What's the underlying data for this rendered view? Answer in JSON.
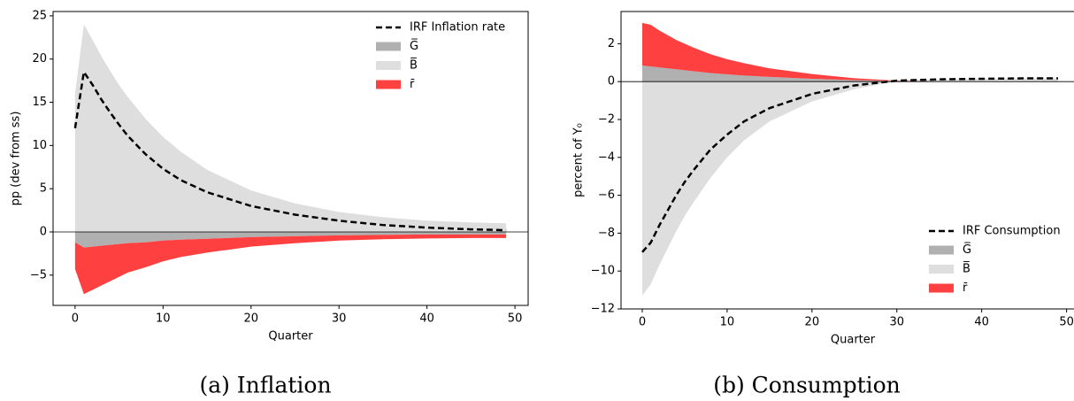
{
  "chart_data": [
    {
      "type": "area",
      "caption": "(a) Inflation",
      "xlabel": "Quarter",
      "ylabel": "pp (dev from ss)",
      "legend": "upper right",
      "x": [
        0,
        1,
        2,
        3,
        4,
        5,
        6,
        8,
        10,
        12,
        15,
        20,
        25,
        30,
        35,
        40,
        45,
        49
      ],
      "xlim": [
        -2.5,
        51.5
      ],
      "xticks": [
        0,
        10,
        20,
        30,
        40,
        50
      ],
      "ylim": [
        -8.5,
        25.5
      ],
      "yticks": [
        {
          "value": -5,
          "label": "−5"
        },
        0,
        5,
        10,
        15,
        20,
        25
      ],
      "series": [
        {
          "name": "IRF Inflation rate",
          "type": "line",
          "color": "#000000",
          "values": [
            12,
            18.5,
            17,
            15.3,
            13.8,
            12.4,
            11.1,
            9,
            7.3,
            6,
            4.6,
            3,
            2,
            1.3,
            0.8,
            0.5,
            0.3,
            0.2
          ]
        },
        {
          "name": "G̅",
          "color": "#b0b0b0",
          "values": [
            -1.2,
            -1.8,
            -1.7,
            -1.6,
            -1.5,
            -1.4,
            -1.3,
            -1.2,
            -1,
            -0.9,
            -0.8,
            -0.6,
            -0.5,
            -0.4,
            -0.35,
            -0.3,
            -0.3,
            -0.3
          ]
        },
        {
          "name": "B̅",
          "color": "#dedede",
          "values": [
            16,
            24,
            22.2,
            20.3,
            18.6,
            17,
            15.6,
            13.1,
            11,
            9.3,
            7.2,
            4.8,
            3.3,
            2.3,
            1.7,
            1.3,
            1.1,
            1
          ]
        },
        {
          "name": "r̄",
          "color": "#ff4040",
          "values": [
            -3.1,
            -5.4,
            -5,
            -4.6,
            -4.2,
            -3.8,
            -3.4,
            -2.9,
            -2.4,
            -2,
            -1.6,
            -1.1,
            -0.8,
            -0.6,
            -0.5,
            -0.45,
            -0.4,
            -0.4
          ]
        }
      ]
    },
    {
      "type": "area",
      "caption": "(b) Consumption",
      "xlabel": "Quarter",
      "ylabel": "percent of Y₀",
      "legend": "lower right",
      "x": [
        0,
        1,
        2,
        3,
        4,
        5,
        6,
        8,
        10,
        12,
        15,
        20,
        25,
        30,
        35,
        40,
        45,
        49
      ],
      "xlim": [
        -2.5,
        51.5
      ],
      "xticks": [
        0,
        10,
        20,
        30,
        40,
        50
      ],
      "ylim": [
        -12,
        3.7
      ],
      "yticks": [
        {
          "value": -12,
          "label": "−12"
        },
        {
          "value": -10,
          "label": "−10"
        },
        {
          "value": -8,
          "label": "−8"
        },
        {
          "value": -6,
          "label": "−6"
        },
        {
          "value": -4,
          "label": "−4"
        },
        {
          "value": -2,
          "label": "−2"
        },
        0,
        2
      ],
      "series": [
        {
          "name": "IRF Consumption",
          "type": "line",
          "color": "#000000",
          "values": [
            -9,
            -8.5,
            -7.6,
            -6.8,
            -6,
            -5.3,
            -4.7,
            -3.6,
            -2.8,
            -2.1,
            -1.4,
            -0.65,
            -0.2,
            0.05,
            0.12,
            0.15,
            0.17,
            0.17
          ]
        },
        {
          "name": "G̅",
          "color": "#b0b0b0",
          "values": [
            0.85,
            0.8,
            0.75,
            0.7,
            0.65,
            0.6,
            0.55,
            0.45,
            0.38,
            0.32,
            0.25,
            0.15,
            0.08,
            0.03,
            0.01,
            0,
            0,
            0
          ]
        },
        {
          "name": "B̅",
          "color": "#dedede",
          "values": [
            -11.3,
            -10.7,
            -9.7,
            -8.8,
            -7.9,
            -7.1,
            -6.4,
            -5.1,
            -4,
            -3.1,
            -2.1,
            -1.05,
            -0.4,
            0,
            0.1,
            0.15,
            0.17,
            0.17
          ]
        },
        {
          "name": "r̄",
          "color": "#ff4040",
          "values": [
            2.25,
            2.2,
            1.95,
            1.75,
            1.55,
            1.4,
            1.25,
            1,
            0.8,
            0.65,
            0.45,
            0.25,
            0.1,
            0.02,
            0,
            0,
            0,
            0
          ]
        }
      ]
    }
  ]
}
